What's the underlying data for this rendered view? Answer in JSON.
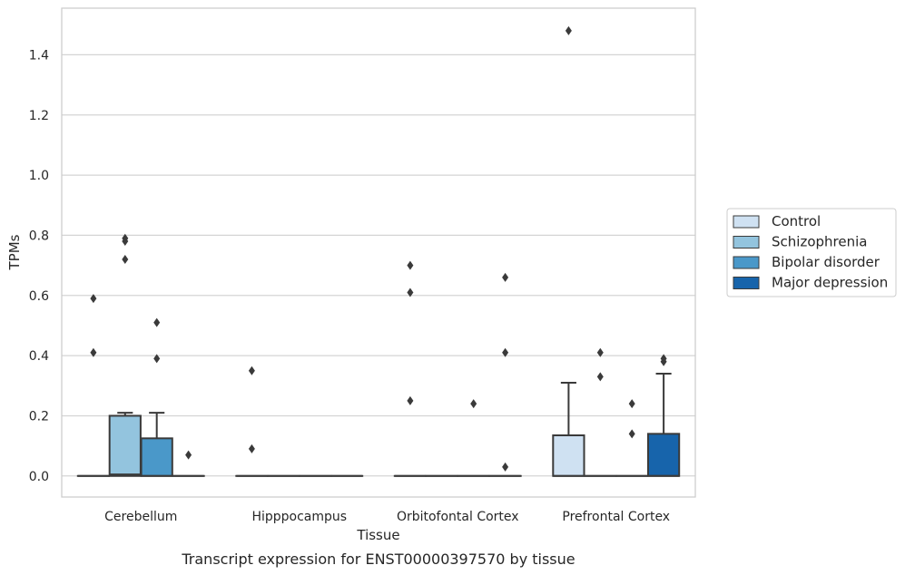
{
  "chart_data": {
    "type": "box",
    "caption": "Transcript expression for ENST00000397570 by tissue",
    "xlabel": "Tissue",
    "ylabel": "TPMs",
    "ylim": [
      -0.07,
      1.555
    ],
    "yticks": [
      "0.0",
      "0.2",
      "0.4",
      "0.6",
      "0.8",
      "1.0",
      "1.2",
      "1.4"
    ],
    "grid": "horizontal",
    "legend_position": "right",
    "categories": [
      "Cerebellum",
      "Hipppocampus",
      "Orbitofontal Cortex",
      "Prefrontal Cortex"
    ],
    "series": [
      {
        "name": "Control",
        "color": "#cfe1f2",
        "boxes": [
          {
            "q1": 0,
            "median": 0,
            "q3": 0,
            "whisker_low": 0,
            "whisker_high": 0,
            "outliers": [
              0.41,
              0.59
            ]
          },
          {
            "q1": 0,
            "median": 0,
            "q3": 0,
            "whisker_low": 0,
            "whisker_high": 0,
            "outliers": [
              0.09,
              0.35
            ]
          },
          {
            "q1": 0,
            "median": 0,
            "q3": 0,
            "whisker_low": 0,
            "whisker_high": 0,
            "outliers": [
              0.25,
              0.61,
              0.7
            ]
          },
          {
            "q1": 0,
            "median": 0,
            "q3": 0.135,
            "whisker_low": 0,
            "whisker_high": 0.31,
            "outliers": [
              1.48
            ]
          }
        ]
      },
      {
        "name": "Schizophrenia",
        "color": "#93c4de",
        "boxes": [
          {
            "q1": 0,
            "median": 0.005,
            "q3": 0.2,
            "whisker_low": 0,
            "whisker_high": 0.21,
            "outliers": [
              0.72,
              0.78,
              0.79
            ]
          },
          {
            "q1": 0,
            "median": 0,
            "q3": 0,
            "whisker_low": 0,
            "whisker_high": 0,
            "outliers": []
          },
          {
            "q1": 0,
            "median": 0,
            "q3": 0,
            "whisker_low": 0,
            "whisker_high": 0,
            "outliers": []
          },
          {
            "q1": 0,
            "median": 0,
            "q3": 0,
            "whisker_low": 0,
            "whisker_high": 0,
            "outliers": [
              0.33,
              0.41
            ]
          }
        ]
      },
      {
        "name": "Bipolar disorder",
        "color": "#4a98c9",
        "boxes": [
          {
            "q1": 0,
            "median": 0,
            "q3": 0.125,
            "whisker_low": 0,
            "whisker_high": 0.21,
            "outliers": [
              0.39,
              0.51
            ]
          },
          {
            "q1": 0,
            "median": 0,
            "q3": 0,
            "whisker_low": 0,
            "whisker_high": 0,
            "outliers": []
          },
          {
            "q1": 0,
            "median": 0,
            "q3": 0,
            "whisker_low": 0,
            "whisker_high": 0,
            "outliers": [
              0.24
            ]
          },
          {
            "q1": 0,
            "median": 0,
            "q3": 0,
            "whisker_low": 0,
            "whisker_high": 0,
            "outliers": [
              0.14,
              0.24
            ]
          }
        ]
      },
      {
        "name": "Major depression",
        "color": "#1764ab",
        "boxes": [
          {
            "q1": 0,
            "median": 0,
            "q3": 0,
            "whisker_low": 0,
            "whisker_high": 0,
            "outliers": [
              0.07
            ]
          },
          {
            "q1": 0,
            "median": 0,
            "q3": 0,
            "whisker_low": 0,
            "whisker_high": 0,
            "outliers": []
          },
          {
            "q1": 0,
            "median": 0,
            "q3": 0,
            "whisker_low": 0,
            "whisker_high": 0,
            "outliers": [
              0.03,
              0.41,
              0.66
            ]
          },
          {
            "q1": 0,
            "median": 0,
            "q3": 0.14,
            "whisker_low": 0,
            "whisker_high": 0.34,
            "outliers": [
              0.38,
              0.39
            ]
          }
        ]
      }
    ]
  }
}
